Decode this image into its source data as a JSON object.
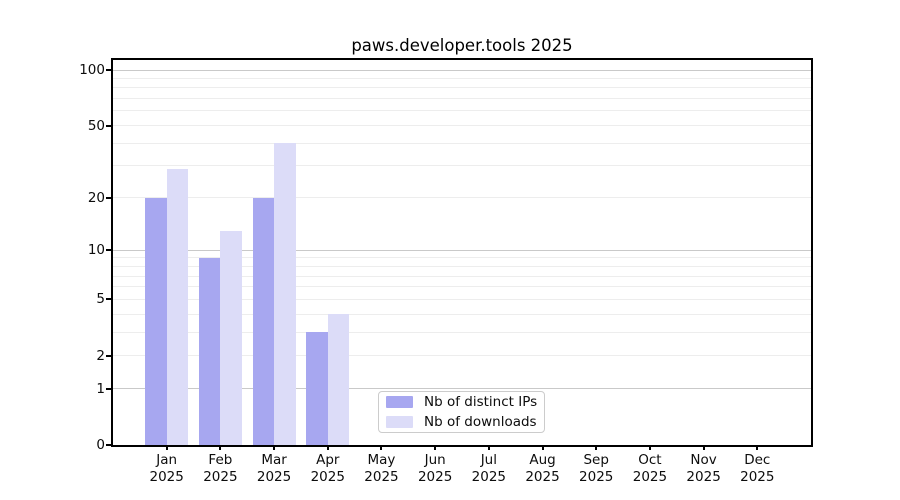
{
  "chart_data": {
    "type": "bar",
    "title": "paws.developer.tools 2025",
    "x_axis": {
      "categories": [
        "Jan",
        "Feb",
        "Mar",
        "Apr",
        "May",
        "Jun",
        "Jul",
        "Aug",
        "Sep",
        "Oct",
        "Nov",
        "Dec"
      ],
      "sub_label": "2025"
    },
    "y_axis": {
      "scale": "log1p",
      "tick_values": [
        0,
        1,
        2,
        5,
        10,
        20,
        50,
        100
      ],
      "major_gridlines": [
        1,
        10,
        100
      ],
      "minor_gridlines": [
        2,
        3,
        4,
        5,
        6,
        7,
        8,
        9,
        20,
        30,
        40,
        50,
        60,
        70,
        80,
        90
      ],
      "top_value": 100,
      "bottom_value": 0
    },
    "series": [
      {
        "name": "Nb of distinct IPs",
        "color": "#a7a7f0",
        "values": [
          20,
          9,
          20,
          3,
          0,
          0,
          0,
          0,
          0,
          0,
          0,
          0
        ]
      },
      {
        "name": "Nb of downloads",
        "color": "#dcdcf8",
        "values": [
          29,
          13,
          40,
          4,
          0,
          0,
          0,
          0,
          0,
          0,
          0,
          0
        ]
      }
    ],
    "legend_position": "lower center",
    "grid": true
  },
  "colors": {
    "minor_grid": "#ededed",
    "major_grid": "#c9c9c9",
    "spine": "#000000",
    "text": "#0d0d0d",
    "legend_border": "#cccccc",
    "background": "#ffffff"
  }
}
